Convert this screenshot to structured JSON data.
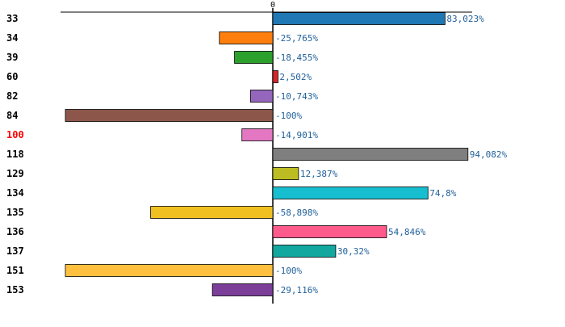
{
  "chart_data": {
    "type": "bar",
    "orientation": "horizontal",
    "title": "",
    "xlabel": "",
    "ylabel": "",
    "xlim": [
      -100,
      100
    ],
    "zero_tick_label": "0",
    "grid": false,
    "legend": "none",
    "categories": [
      "33",
      "34",
      "39",
      "60",
      "82",
      "84",
      "100",
      "118",
      "129",
      "134",
      "135",
      "136",
      "137",
      "151",
      "153"
    ],
    "values": [
      83.023,
      -25.765,
      -18.455,
      2.502,
      -10.743,
      -100,
      -14.901,
      94.082,
      12.387,
      74.8,
      -58.898,
      54.846,
      30.32,
      -100,
      -29.116
    ],
    "value_labels": [
      "83,023%",
      "-25,765%",
      "-18,455%",
      "2,502%",
      "-10,743%",
      "-100%",
      "-14,901%",
      "94,082%",
      "12,387%",
      "74,8%",
      "-58,898%",
      "54,846%",
      "30,32%",
      "-100%",
      "-29,116%"
    ],
    "colors": [
      "#1f77b4",
      "#ff7f0e",
      "#2ca02c",
      "#d62728",
      "#9467bd",
      "#8c564b",
      "#e377c2",
      "#7f7f7f",
      "#bcbd22",
      "#17becf",
      "#f0c020",
      "#ff5a8c",
      "#12a8a0",
      "#ffc040",
      "#7b3f99"
    ],
    "highlight_category": "100",
    "highlight_color": "#ff0000",
    "label_color": "#1f5f99"
  }
}
